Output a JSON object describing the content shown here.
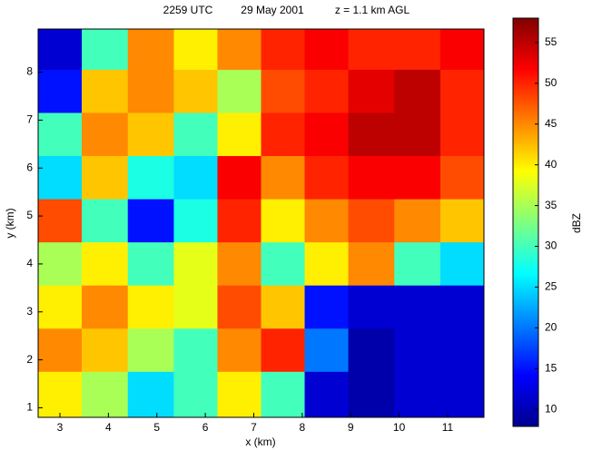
{
  "chart_data": {
    "type": "heatmap",
    "title": [
      "2259 UTC",
      "29 May 2001",
      "z = 1.1 km AGL"
    ],
    "x_label": "x (km)",
    "y_label": "y (km)",
    "colorbar_label": "dBZ",
    "x": [
      3.0,
      3.9,
      4.9,
      5.8,
      6.7,
      7.6,
      8.5,
      9.4,
      10.4,
      11.3
    ],
    "y": [
      8.5,
      7.6,
      6.7,
      5.8,
      4.9,
      4.0,
      3.1,
      2.2,
      1.3
    ],
    "z": [
      [
        12,
        30,
        45,
        40,
        45,
        50,
        52,
        50,
        50,
        52
      ],
      [
        15,
        42,
        45,
        42,
        35,
        48,
        50,
        53,
        55,
        50
      ],
      [
        30,
        45,
        42,
        30,
        40,
        50,
        52,
        55,
        55,
        50
      ],
      [
        25,
        42,
        28,
        25,
        52,
        45,
        50,
        52,
        52,
        48
      ],
      [
        48,
        30,
        15,
        28,
        50,
        40,
        45,
        48,
        45,
        42
      ],
      [
        35,
        40,
        30,
        38,
        45,
        30,
        40,
        45,
        30,
        25
      ],
      [
        40,
        45,
        40,
        38,
        48,
        42,
        15,
        12,
        12,
        12
      ],
      [
        45,
        42,
        35,
        30,
        45,
        50,
        20,
        10,
        12,
        12
      ],
      [
        40,
        35,
        25,
        30,
        40,
        30,
        12,
        10,
        12,
        12
      ]
    ],
    "xlim": [
      2.55,
      11.75
    ],
    "ylim": [
      0.8,
      8.9
    ],
    "xticks": [
      3,
      4,
      5,
      6,
      7,
      8,
      9,
      10,
      11
    ],
    "yticks": [
      1,
      2,
      3,
      4,
      5,
      6,
      7,
      8
    ],
    "clim": [
      7.9,
      58
    ],
    "cticks": [
      10,
      15,
      20,
      25,
      30,
      35,
      40,
      45,
      50,
      55
    ],
    "colormap": "jet"
  }
}
